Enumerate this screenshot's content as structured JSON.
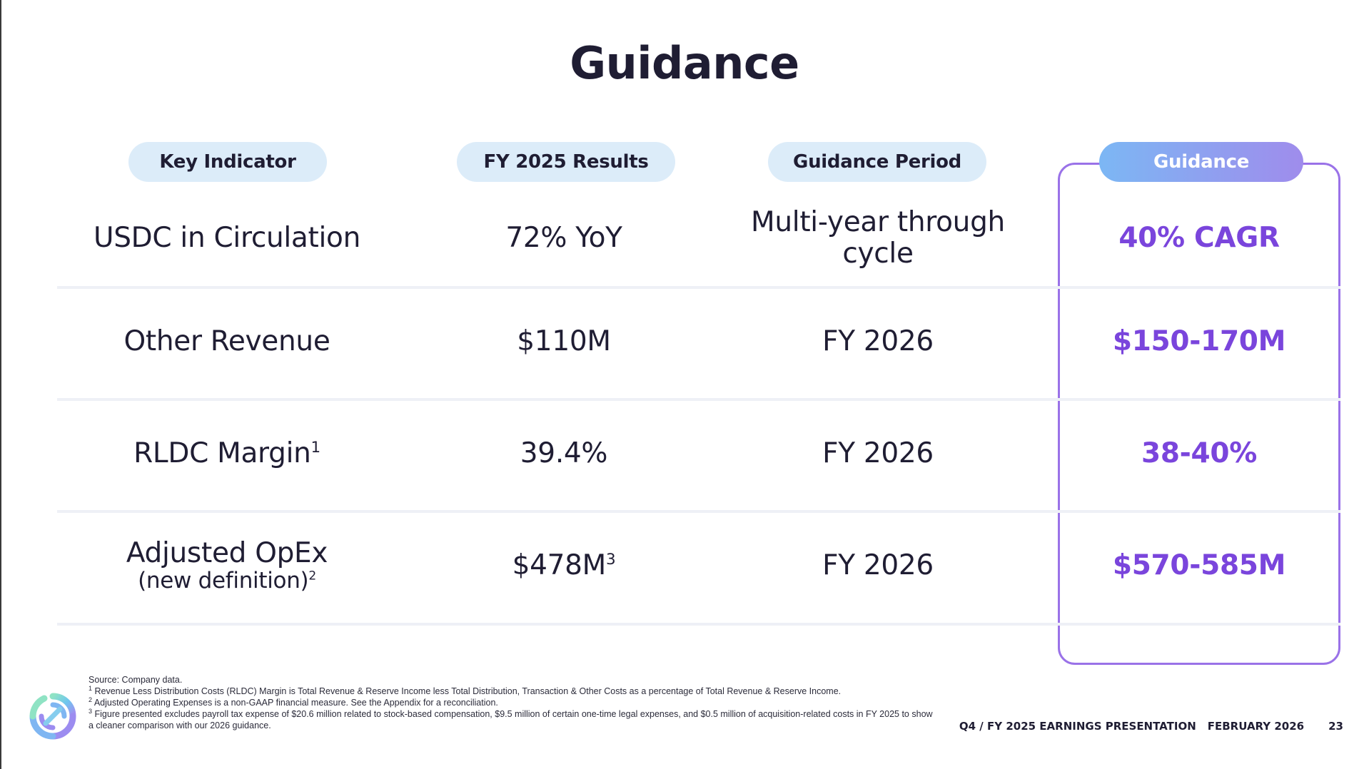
{
  "slide": {
    "title": "Guidance",
    "headers": {
      "key_indicator": "Key Indicator",
      "fy2025_results": "FY 2025 Results",
      "guidance_period": "Guidance Period",
      "guidance": "Guidance"
    },
    "rows": [
      {
        "indicator": "USDC in Circulation",
        "result": "72% YoY",
        "period_line1": "Multi-year through",
        "period_line2": "cycle",
        "guidance": "40% CAGR"
      },
      {
        "indicator": "Other Revenue",
        "result": "$110M",
        "period": "FY 2026",
        "guidance": "$150-170M"
      },
      {
        "indicator": "RLDC Margin",
        "indicator_sup": "1",
        "result": "39.4%",
        "period": "FY 2026",
        "guidance": "38-40%"
      },
      {
        "indicator": "Adjusted OpEx",
        "indicator_sub": "(new definition)",
        "indicator_sub_sup": "2",
        "result": "$478M",
        "result_sup": "3",
        "period": "FY 2026",
        "guidance": "$570-585M"
      }
    ]
  },
  "footnotes": {
    "source": "Source: Company data.",
    "note1_num": "1",
    "note1": "Revenue Less Distribution Costs (RLDC) Margin is Total Revenue & Reserve Income less Total Distribution, Transaction & Other Costs as a percentage of Total Revenue & Reserve Income.",
    "note2_num": "2",
    "note2": "Adjusted Operating Expenses is a non-GAAP financial measure. See the Appendix for a reconciliation.",
    "note3_num": "3",
    "note3": "Figure presented excludes payroll tax expense of $20.6 million related to stock-based compensation, $9.5 million of certain one-time legal expenses, and $0.5 million of acquisition-related costs in FY 2025 to show a cleaner comparison with our 2026 guidance."
  },
  "footer": {
    "presentation": "Q4 / FY 2025 EARNINGS PRESENTATION",
    "date": "FEBRUARY 2026",
    "page_number": "23"
  },
  "icons": {
    "logo": "circle-logo-icon"
  },
  "colors": {
    "text": "#1f1d33",
    "pill_bg": "#dcecf9",
    "accent_purple": "#7a45dc",
    "box_border": "#9a72e8",
    "gradient_start": "#7cb7f4",
    "gradient_end": "#9f8cec"
  }
}
